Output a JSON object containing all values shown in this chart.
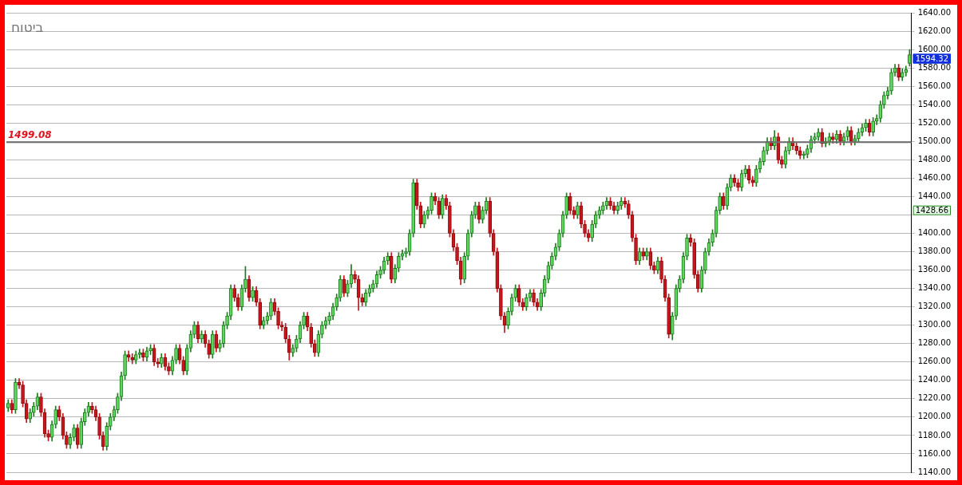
{
  "chart_data": {
    "type": "candlestick",
    "title": "ביטוח",
    "categories": [
      null,
      null,
      null,
      null,
      null,
      null,
      null,
      null,
      null,
      null,
      null,
      null,
      null,
      null,
      null,
      null,
      null,
      null,
      null,
      null,
      null,
      null,
      null,
      null,
      null,
      null,
      null,
      null,
      null,
      null,
      null,
      null,
      null,
      null,
      null,
      null,
      null,
      null,
      null,
      null,
      null,
      null,
      null,
      null,
      null,
      null,
      null,
      null,
      null,
      null,
      null,
      null,
      null,
      null,
      null,
      null,
      null,
      null,
      null,
      null,
      null,
      null,
      null,
      null,
      null,
      null,
      null,
      null,
      null,
      null,
      null,
      null,
      null,
      null,
      null,
      null,
      null,
      null,
      null,
      null,
      null,
      null,
      null,
      null,
      null,
      null,
      null,
      null,
      null,
      null,
      null,
      null,
      null,
      null,
      null,
      null,
      null,
      null,
      null,
      null,
      null,
      null,
      null,
      null,
      null,
      null,
      null,
      null,
      null,
      null,
      null,
      null,
      null,
      null,
      null,
      null,
      null,
      null,
      null,
      null,
      null,
      null,
      null,
      null,
      null,
      null,
      null,
      null,
      null,
      null,
      null,
      null,
      null,
      null,
      null,
      null,
      null,
      null,
      null,
      null,
      null,
      null,
      null,
      null,
      null,
      null,
      null,
      null,
      null,
      null,
      null,
      null,
      null,
      null,
      null,
      null,
      null,
      null,
      null,
      null,
      null,
      null,
      null,
      null,
      null,
      null,
      null,
      null,
      null,
      null,
      null,
      null,
      null,
      null,
      null,
      null,
      null,
      null,
      null,
      null,
      null,
      null,
      null,
      null,
      null,
      null,
      null,
      null,
      null,
      null,
      null,
      null,
      null,
      null,
      null,
      null,
      null,
      null,
      null,
      null,
      null,
      null,
      null,
      null,
      null,
      null,
      null,
      null,
      null,
      null,
      null,
      null,
      null,
      null,
      null,
      null,
      null,
      null,
      null,
      null,
      null,
      null,
      null,
      null,
      null,
      null,
      null,
      null,
      null,
      null,
      null,
      null,
      null,
      null,
      null,
      null,
      null,
      null,
      null,
      null,
      null,
      null,
      null,
      null,
      null,
      null,
      null,
      null
    ],
    "ohlc": [
      [
        1210,
        1219,
        1206,
        1215
      ],
      [
        1215,
        1219,
        1204,
        1208
      ],
      [
        1208,
        1242,
        1204,
        1238
      ],
      [
        1238,
        1242,
        1231,
        1235
      ],
      [
        1235,
        1239,
        1211,
        1215
      ],
      [
        1215,
        1219,
        1194,
        1198
      ],
      [
        1198,
        1209,
        1194,
        1205
      ],
      [
        1205,
        1216,
        1201,
        1212
      ],
      [
        1212,
        1226,
        1208,
        1222
      ],
      [
        1222,
        1226,
        1201,
        1205
      ],
      [
        1205,
        1209,
        1178,
        1182
      ],
      [
        1182,
        1186,
        1174,
        1178
      ],
      [
        1178,
        1196,
        1174,
        1192
      ],
      [
        1192,
        1212,
        1188,
        1208
      ],
      [
        1208,
        1212,
        1196,
        1200
      ],
      [
        1200,
        1204,
        1176,
        1180
      ],
      [
        1180,
        1184,
        1166,
        1170
      ],
      [
        1170,
        1182,
        1166,
        1178
      ],
      [
        1178,
        1192,
        1174,
        1188
      ],
      [
        1188,
        1192,
        1166,
        1170
      ],
      [
        1170,
        1199,
        1166,
        1195
      ],
      [
        1195,
        1209,
        1191,
        1205
      ],
      [
        1205,
        1216,
        1201,
        1212
      ],
      [
        1212,
        1216,
        1204,
        1208
      ],
      [
        1208,
        1212,
        1196,
        1200
      ],
      [
        1200,
        1204,
        1176,
        1180
      ],
      [
        1180,
        1184,
        1164,
        1168
      ],
      [
        1168,
        1194,
        1164,
        1190
      ],
      [
        1190,
        1204,
        1186,
        1200
      ],
      [
        1200,
        1212,
        1196,
        1208
      ],
      [
        1208,
        1226,
        1204,
        1222
      ],
      [
        1222,
        1249,
        1218,
        1245
      ],
      [
        1245,
        1272,
        1241,
        1268
      ],
      [
        1268,
        1272,
        1261,
        1265
      ],
      [
        1265,
        1269,
        1258,
        1262
      ],
      [
        1262,
        1272,
        1258,
        1268
      ],
      [
        1268,
        1274,
        1264,
        1270
      ],
      [
        1270,
        1274,
        1261,
        1265
      ],
      [
        1265,
        1276,
        1261,
        1272
      ],
      [
        1272,
        1279,
        1268,
        1275
      ],
      [
        1275,
        1279,
        1256,
        1260
      ],
      [
        1260,
        1264,
        1254,
        1258
      ],
      [
        1258,
        1269,
        1254,
        1265
      ],
      [
        1265,
        1269,
        1251,
        1255
      ],
      [
        1255,
        1259,
        1246,
        1250
      ],
      [
        1250,
        1266,
        1246,
        1262
      ],
      [
        1262,
        1279,
        1258,
        1275
      ],
      [
        1275,
        1279,
        1258,
        1262
      ],
      [
        1262,
        1266,
        1246,
        1250
      ],
      [
        1250,
        1279,
        1246,
        1275
      ],
      [
        1275,
        1294,
        1271,
        1290
      ],
      [
        1290,
        1304,
        1286,
        1300
      ],
      [
        1300,
        1304,
        1281,
        1285
      ],
      [
        1285,
        1294,
        1281,
        1290
      ],
      [
        1290,
        1294,
        1276,
        1280
      ],
      [
        1280,
        1284,
        1264,
        1268
      ],
      [
        1268,
        1294,
        1264,
        1290
      ],
      [
        1290,
        1294,
        1271,
        1275
      ],
      [
        1275,
        1284,
        1271,
        1280
      ],
      [
        1280,
        1304,
        1276,
        1300
      ],
      [
        1300,
        1314,
        1296,
        1310
      ],
      [
        1310,
        1344,
        1306,
        1340
      ],
      [
        1340,
        1344,
        1326,
        1330
      ],
      [
        1330,
        1334,
        1316,
        1320
      ],
      [
        1320,
        1344,
        1316,
        1340
      ],
      [
        1340,
        1364,
        1336,
        1350
      ],
      [
        1350,
        1354,
        1326,
        1330
      ],
      [
        1330,
        1342,
        1326,
        1338
      ],
      [
        1338,
        1342,
        1321,
        1325
      ],
      [
        1325,
        1329,
        1296,
        1300
      ],
      [
        1300,
        1309,
        1296,
        1305
      ],
      [
        1305,
        1314,
        1301,
        1310
      ],
      [
        1310,
        1329,
        1306,
        1325
      ],
      [
        1325,
        1329,
        1311,
        1315
      ],
      [
        1315,
        1319,
        1296,
        1300
      ],
      [
        1300,
        1304,
        1294,
        1298
      ],
      [
        1298,
        1302,
        1281,
        1285
      ],
      [
        1285,
        1289,
        1262,
        1270
      ],
      [
        1270,
        1279,
        1266,
        1275
      ],
      [
        1275,
        1289,
        1271,
        1285
      ],
      [
        1285,
        1304,
        1281,
        1300
      ],
      [
        1300,
        1314,
        1296,
        1310
      ],
      [
        1310,
        1314,
        1294,
        1298
      ],
      [
        1298,
        1302,
        1276,
        1280
      ],
      [
        1280,
        1284,
        1266,
        1270
      ],
      [
        1270,
        1294,
        1266,
        1290
      ],
      [
        1290,
        1304,
        1286,
        1300
      ],
      [
        1300,
        1309,
        1296,
        1305
      ],
      [
        1305,
        1314,
        1301,
        1310
      ],
      [
        1310,
        1324,
        1306,
        1320
      ],
      [
        1320,
        1334,
        1316,
        1330
      ],
      [
        1330,
        1354,
        1326,
        1350
      ],
      [
        1350,
        1354,
        1331,
        1335
      ],
      [
        1335,
        1349,
        1331,
        1345
      ],
      [
        1345,
        1366,
        1341,
        1355
      ],
      [
        1355,
        1359,
        1346,
        1350
      ],
      [
        1350,
        1354,
        1316,
        1330
      ],
      [
        1330,
        1334,
        1321,
        1325
      ],
      [
        1325,
        1339,
        1321,
        1335
      ],
      [
        1335,
        1344,
        1331,
        1340
      ],
      [
        1340,
        1349,
        1336,
        1345
      ],
      [
        1345,
        1359,
        1341,
        1355
      ],
      [
        1355,
        1364,
        1351,
        1360
      ],
      [
        1360,
        1374,
        1356,
        1370
      ],
      [
        1370,
        1379,
        1366,
        1375
      ],
      [
        1375,
        1379,
        1346,
        1350
      ],
      [
        1350,
        1366,
        1346,
        1362
      ],
      [
        1362,
        1379,
        1358,
        1375
      ],
      [
        1375,
        1382,
        1371,
        1378
      ],
      [
        1378,
        1384,
        1374,
        1380
      ],
      [
        1380,
        1404,
        1376,
        1400
      ],
      [
        1400,
        1459,
        1396,
        1455
      ],
      [
        1455,
        1459,
        1426,
        1430
      ],
      [
        1430,
        1434,
        1406,
        1410
      ],
      [
        1410,
        1424,
        1406,
        1420
      ],
      [
        1420,
        1429,
        1416,
        1425
      ],
      [
        1425,
        1444,
        1421,
        1440
      ],
      [
        1440,
        1444,
        1431,
        1435
      ],
      [
        1435,
        1439,
        1416,
        1420
      ],
      [
        1420,
        1442,
        1416,
        1438
      ],
      [
        1438,
        1442,
        1426,
        1430
      ],
      [
        1430,
        1434,
        1396,
        1400
      ],
      [
        1400,
        1404,
        1381,
        1385
      ],
      [
        1385,
        1389,
        1366,
        1370
      ],
      [
        1370,
        1374,
        1344,
        1350
      ],
      [
        1350,
        1379,
        1346,
        1375
      ],
      [
        1375,
        1404,
        1371,
        1400
      ],
      [
        1400,
        1424,
        1396,
        1420
      ],
      [
        1420,
        1434,
        1416,
        1430
      ],
      [
        1430,
        1434,
        1411,
        1415
      ],
      [
        1415,
        1429,
        1411,
        1425
      ],
      [
        1425,
        1439,
        1421,
        1435
      ],
      [
        1435,
        1439,
        1396,
        1400
      ],
      [
        1400,
        1404,
        1376,
        1380
      ],
      [
        1380,
        1384,
        1336,
        1340
      ],
      [
        1340,
        1344,
        1306,
        1310
      ],
      [
        1310,
        1314,
        1292,
        1300
      ],
      [
        1300,
        1319,
        1296,
        1315
      ],
      [
        1315,
        1334,
        1311,
        1330
      ],
      [
        1330,
        1344,
        1326,
        1340
      ],
      [
        1340,
        1344,
        1321,
        1325
      ],
      [
        1325,
        1329,
        1316,
        1320
      ],
      [
        1320,
        1334,
        1316,
        1330
      ],
      [
        1330,
        1339,
        1326,
        1335
      ],
      [
        1335,
        1339,
        1321,
        1325
      ],
      [
        1325,
        1329,
        1316,
        1320
      ],
      [
        1320,
        1339,
        1316,
        1335
      ],
      [
        1335,
        1354,
        1331,
        1350
      ],
      [
        1350,
        1369,
        1346,
        1365
      ],
      [
        1365,
        1379,
        1361,
        1375
      ],
      [
        1375,
        1389,
        1371,
        1385
      ],
      [
        1385,
        1404,
        1381,
        1400
      ],
      [
        1400,
        1424,
        1396,
        1420
      ],
      [
        1420,
        1444,
        1416,
        1440
      ],
      [
        1440,
        1444,
        1421,
        1425
      ],
      [
        1425,
        1429,
        1416,
        1420
      ],
      [
        1420,
        1434,
        1416,
        1430
      ],
      [
        1430,
        1434,
        1406,
        1410
      ],
      [
        1410,
        1414,
        1396,
        1400
      ],
      [
        1400,
        1404,
        1391,
        1395
      ],
      [
        1395,
        1414,
        1391,
        1410
      ],
      [
        1410,
        1424,
        1406,
        1420
      ],
      [
        1420,
        1429,
        1416,
        1425
      ],
      [
        1425,
        1434,
        1421,
        1430
      ],
      [
        1430,
        1439,
        1426,
        1435
      ],
      [
        1435,
        1439,
        1426,
        1430
      ],
      [
        1430,
        1434,
        1421,
        1425
      ],
      [
        1425,
        1434,
        1421,
        1430
      ],
      [
        1430,
        1439,
        1426,
        1435
      ],
      [
        1435,
        1439,
        1428,
        1432
      ],
      [
        1432,
        1436,
        1416,
        1420
      ],
      [
        1420,
        1424,
        1391,
        1395
      ],
      [
        1395,
        1399,
        1366,
        1370
      ],
      [
        1370,
        1384,
        1366,
        1380
      ],
      [
        1380,
        1384,
        1371,
        1375
      ],
      [
        1375,
        1384,
        1371,
        1380
      ],
      [
        1380,
        1384,
        1361,
        1365
      ],
      [
        1365,
        1369,
        1356,
        1360
      ],
      [
        1360,
        1374,
        1356,
        1370
      ],
      [
        1370,
        1374,
        1346,
        1350
      ],
      [
        1350,
        1354,
        1326,
        1330
      ],
      [
        1330,
        1334,
        1286,
        1290
      ],
      [
        1290,
        1314,
        1284,
        1310
      ],
      [
        1310,
        1344,
        1306,
        1340
      ],
      [
        1340,
        1354,
        1336,
        1350
      ],
      [
        1350,
        1379,
        1346,
        1375
      ],
      [
        1375,
        1399,
        1371,
        1395
      ],
      [
        1395,
        1399,
        1386,
        1390
      ],
      [
        1390,
        1394,
        1351,
        1355
      ],
      [
        1355,
        1359,
        1336,
        1340
      ],
      [
        1340,
        1364,
        1336,
        1360
      ],
      [
        1360,
        1384,
        1356,
        1380
      ],
      [
        1380,
        1394,
        1376,
        1390
      ],
      [
        1390,
        1404,
        1386,
        1400
      ],
      [
        1400,
        1429,
        1396,
        1425
      ],
      [
        1425,
        1444,
        1421,
        1440
      ],
      [
        1440,
        1444,
        1426,
        1430
      ],
      [
        1430,
        1454,
        1426,
        1450
      ],
      [
        1450,
        1464,
        1446,
        1460
      ],
      [
        1460,
        1464,
        1451,
        1455
      ],
      [
        1455,
        1459,
        1446,
        1450
      ],
      [
        1450,
        1469,
        1446,
        1465
      ],
      [
        1465,
        1474,
        1461,
        1470
      ],
      [
        1470,
        1474,
        1454,
        1458
      ],
      [
        1458,
        1462,
        1451,
        1455
      ],
      [
        1455,
        1474,
        1451,
        1470
      ],
      [
        1470,
        1482,
        1466,
        1478
      ],
      [
        1478,
        1494,
        1474,
        1490
      ],
      [
        1490,
        1504,
        1486,
        1500
      ],
      [
        1500,
        1504,
        1491,
        1495
      ],
      [
        1495,
        1512,
        1491,
        1505
      ],
      [
        1505,
        1509,
        1476,
        1480
      ],
      [
        1480,
        1484,
        1471,
        1475
      ],
      [
        1475,
        1494,
        1471,
        1490
      ],
      [
        1490,
        1504,
        1486,
        1500
      ],
      [
        1500,
        1504,
        1491,
        1495
      ],
      [
        1495,
        1499,
        1486,
        1490
      ],
      [
        1490,
        1494,
        1481,
        1485
      ],
      [
        1485,
        1489,
        1481,
        1486
      ],
      [
        1486,
        1496,
        1482,
        1492
      ],
      [
        1492,
        1506,
        1488,
        1502
      ],
      [
        1502,
        1509,
        1498,
        1505
      ],
      [
        1505,
        1514,
        1501,
        1510
      ],
      [
        1510,
        1514,
        1494,
        1498
      ],
      [
        1498,
        1504,
        1494,
        1500
      ],
      [
        1500,
        1509,
        1496,
        1505
      ],
      [
        1505,
        1509,
        1498,
        1502
      ],
      [
        1502,
        1512,
        1498,
        1508
      ],
      [
        1508,
        1512,
        1496,
        1500
      ],
      [
        1500,
        1509,
        1496,
        1505
      ],
      [
        1505,
        1516,
        1501,
        1512
      ],
      [
        1512,
        1516,
        1496,
        1500
      ],
      [
        1500,
        1507,
        1496,
        1503
      ],
      [
        1503,
        1514,
        1499,
        1510
      ],
      [
        1510,
        1519,
        1506,
        1515
      ],
      [
        1515,
        1524,
        1511,
        1520
      ],
      [
        1520,
        1524,
        1506,
        1510
      ],
      [
        1510,
        1526,
        1506,
        1522
      ],
      [
        1522,
        1529,
        1518,
        1525
      ],
      [
        1525,
        1544,
        1521,
        1540
      ],
      [
        1540,
        1554,
        1536,
        1550
      ],
      [
        1550,
        1559,
        1546,
        1555
      ],
      [
        1555,
        1579,
        1551,
        1575
      ],
      [
        1575,
        1584,
        1571,
        1580
      ],
      [
        1580,
        1584,
        1566,
        1570
      ],
      [
        1570,
        1579,
        1566,
        1575
      ],
      [
        1575,
        1582,
        1571,
        1578
      ],
      [
        1585,
        1600,
        1582,
        1594.32
      ]
    ],
    "ylim": [
      1140,
      1640
    ],
    "yticks": [
      {
        "value": 1140,
        "label": "1140.00"
      },
      {
        "value": 1160,
        "label": "1160.00"
      },
      {
        "value": 1180,
        "label": "1180.00"
      },
      {
        "value": 1200,
        "label": "1200.00"
      },
      {
        "value": 1220,
        "label": "1220.00"
      },
      {
        "value": 1240,
        "label": "1240.00"
      },
      {
        "value": 1260,
        "label": "1260.00"
      },
      {
        "value": 1280,
        "label": "1280.00"
      },
      {
        "value": 1300,
        "label": "1300.00"
      },
      {
        "value": 1320,
        "label": "1320.00"
      },
      {
        "value": 1340,
        "label": "1340.00"
      },
      {
        "value": 1360,
        "label": "1360.00"
      },
      {
        "value": 1380,
        "label": "1380.00"
      },
      {
        "value": 1400,
        "label": "1400.00"
      },
      {
        "value": 1420,
        "label": null
      },
      {
        "value": 1440,
        "label": "1440.00"
      },
      {
        "value": 1460,
        "label": "1460.00"
      },
      {
        "value": 1480,
        "label": "1480.00"
      },
      {
        "value": 1500,
        "label": "1500.00"
      },
      {
        "value": 1520,
        "label": "1520.00"
      },
      {
        "value": 1540,
        "label": "1540.00"
      },
      {
        "value": 1560,
        "label": "1560.00"
      },
      {
        "value": 1580,
        "label": "1580.00"
      },
      {
        "value": 1600,
        "label": "1600.00"
      },
      {
        "value": 1620,
        "label": "1620.00"
      },
      {
        "value": 1640,
        "label": "1640.00"
      }
    ],
    "ref_lines": [
      {
        "axis": "y",
        "value": 1499.08,
        "label": "1499.08",
        "color": "#707070"
      }
    ],
    "annotations": [
      "1594.32",
      "1428.66"
    ],
    "grid": "y",
    "legend": false
  }
}
